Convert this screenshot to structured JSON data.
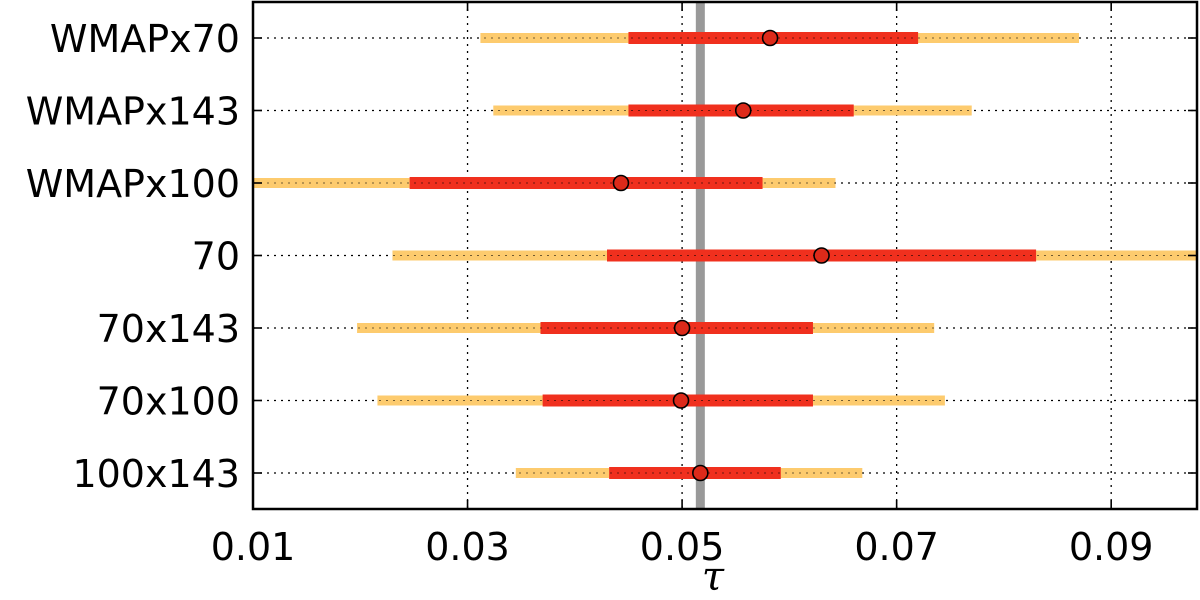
{
  "chart_data": {
    "type": "errorbar",
    "xlabel": "τ",
    "xlim": [
      0.01,
      0.098
    ],
    "xticks": [
      0.01,
      0.03,
      0.05,
      0.07,
      0.09
    ],
    "xtick_labels": [
      "0.01",
      "0.03",
      "0.05",
      "0.07",
      "0.09"
    ],
    "grid": true,
    "reference_line": {
      "x": 0.0517,
      "color": "#999999"
    },
    "colors": {
      "outer_interval": "#fdcb6e",
      "inner_interval": "#f0301e",
      "marker": "#dd2a1a"
    },
    "rows": [
      {
        "label": "WMAPx70",
        "value": 0.0582,
        "inner": [
          0.045,
          0.072
        ],
        "outer": [
          0.0312,
          0.087
        ]
      },
      {
        "label": "WMAPx143",
        "value": 0.0557,
        "inner": [
          0.045,
          0.066
        ],
        "outer": [
          0.0324,
          0.077
        ]
      },
      {
        "label": "WMAPx100",
        "value": 0.0443,
        "inner": [
          0.0246,
          0.0575
        ],
        "outer": [
          0.01,
          0.0643
        ]
      },
      {
        "label": "70",
        "value": 0.063,
        "inner": [
          0.043,
          0.083
        ],
        "outer": [
          0.023,
          0.098
        ]
      },
      {
        "label": "70x143",
        "value": 0.05,
        "inner": [
          0.0368,
          0.0622
        ],
        "outer": [
          0.0197,
          0.0735
        ]
      },
      {
        "label": "70x100",
        "value": 0.0499,
        "inner": [
          0.037,
          0.0622
        ],
        "outer": [
          0.0216,
          0.0745
        ]
      },
      {
        "label": "100x143",
        "value": 0.0517,
        "inner": [
          0.0432,
          0.0592
        ],
        "outer": [
          0.0345,
          0.0668
        ]
      }
    ]
  }
}
